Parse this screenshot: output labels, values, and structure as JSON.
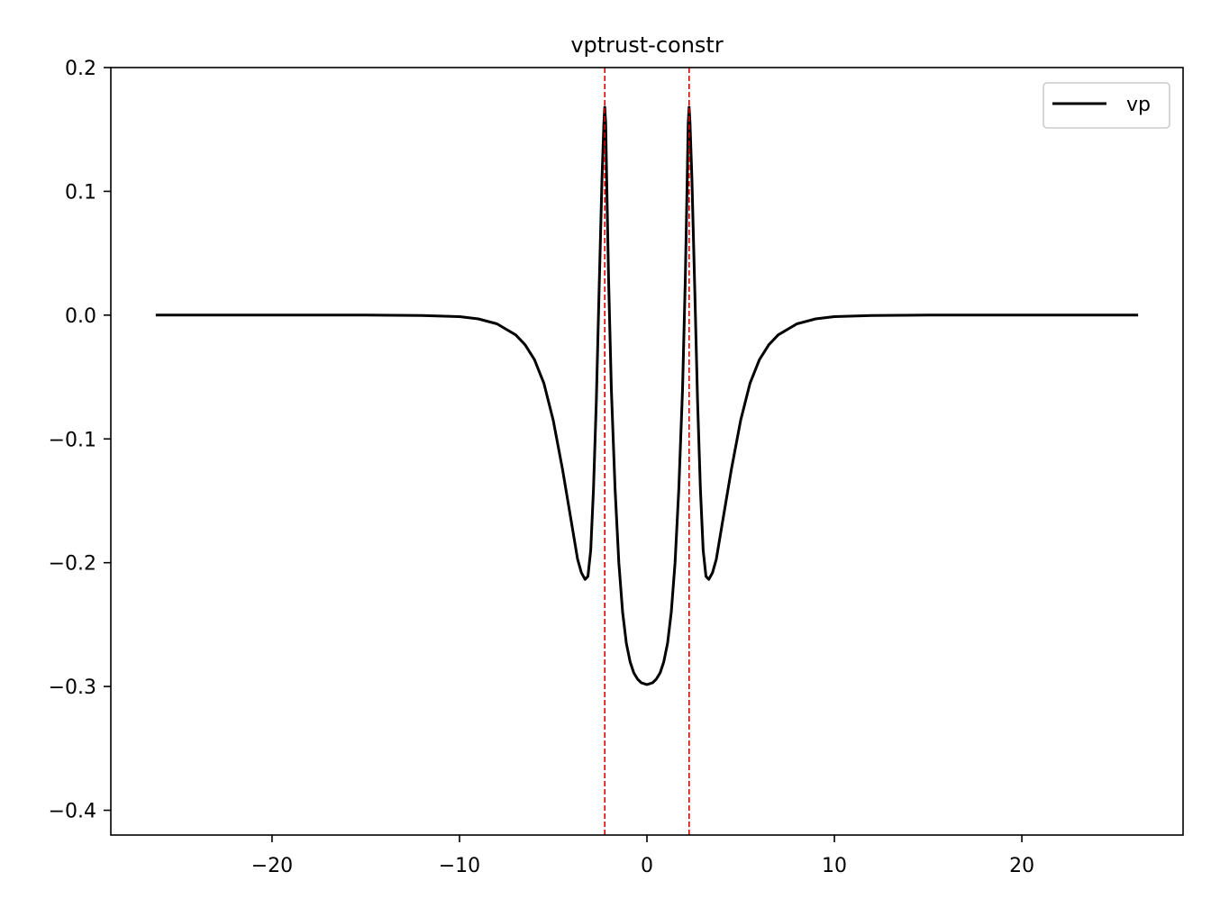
{
  "chart_data": {
    "type": "line",
    "title": "vptrust-constr",
    "xlabel": "",
    "ylabel": "",
    "xlim": [
      -28.6,
      28.6
    ],
    "ylim": [
      -0.42,
      0.2
    ],
    "x_ticks": [
      -20,
      -10,
      0,
      10,
      20
    ],
    "y_ticks": [
      0.2,
      0.1,
      0.0,
      -0.1,
      -0.2,
      -0.3,
      -0.4
    ],
    "x_tick_labels": [
      "−20",
      "−10",
      "0",
      "10",
      "20"
    ],
    "y_tick_labels": [
      "0.2",
      "0.1",
      "0.0",
      "−0.1",
      "−0.2",
      "−0.3",
      "−0.4"
    ],
    "grid": false,
    "legend": {
      "position": "top-right",
      "entries": [
        "vp"
      ]
    },
    "series": [
      {
        "name": "vp",
        "color": "#000000",
        "x": [
          -26.2,
          -20,
          -15,
          -12,
          -10,
          -9,
          -8,
          -7,
          -6.5,
          -6,
          -5.5,
          -5,
          -4.5,
          -4,
          -3.7,
          -3.5,
          -3.3,
          -3.15,
          -3.0,
          -2.85,
          -2.7,
          -2.55,
          -2.4,
          -2.3,
          -2.25,
          -2.2,
          -2.15,
          -2.05,
          -1.9,
          -1.7,
          -1.5,
          -1.3,
          -1.1,
          -0.9,
          -0.7,
          -0.5,
          -0.3,
          -0.1,
          0,
          0.1,
          0.3,
          0.5,
          0.7,
          0.9,
          1.1,
          1.3,
          1.5,
          1.7,
          1.9,
          2.05,
          2.15,
          2.2,
          2.25,
          2.3,
          2.4,
          2.55,
          2.7,
          2.85,
          3.0,
          3.15,
          3.3,
          3.5,
          3.7,
          4,
          4.5,
          5,
          5.5,
          6,
          6.5,
          7,
          8,
          9,
          10,
          12,
          15,
          20,
          26.2
        ],
        "y": [
          0,
          0,
          0,
          -0.0003,
          -0.0012,
          -0.003,
          -0.007,
          -0.016,
          -0.024,
          -0.036,
          -0.055,
          -0.085,
          -0.125,
          -0.17,
          -0.197,
          -0.208,
          -0.2135,
          -0.211,
          -0.19,
          -0.14,
          -0.07,
          0.02,
          0.11,
          0.155,
          0.168,
          0.155,
          0.11,
          0.03,
          -0.06,
          -0.14,
          -0.2,
          -0.24,
          -0.265,
          -0.28,
          -0.289,
          -0.294,
          -0.297,
          -0.298,
          -0.2985,
          -0.298,
          -0.297,
          -0.294,
          -0.289,
          -0.28,
          -0.265,
          -0.24,
          -0.2,
          -0.14,
          -0.06,
          0.03,
          0.11,
          0.155,
          0.168,
          0.155,
          0.11,
          0.02,
          -0.07,
          -0.14,
          -0.19,
          -0.211,
          -0.2135,
          -0.208,
          -0.197,
          -0.17,
          -0.125,
          -0.085,
          -0.055,
          -0.036,
          -0.024,
          -0.016,
          -0.007,
          -0.003,
          -0.0012,
          -0.0003,
          0,
          0,
          0
        ]
      }
    ],
    "vlines": [
      {
        "x": -2.25,
        "color": "#e00000",
        "style": "dashed"
      },
      {
        "x": 2.25,
        "color": "#e00000",
        "style": "dashed"
      }
    ]
  }
}
